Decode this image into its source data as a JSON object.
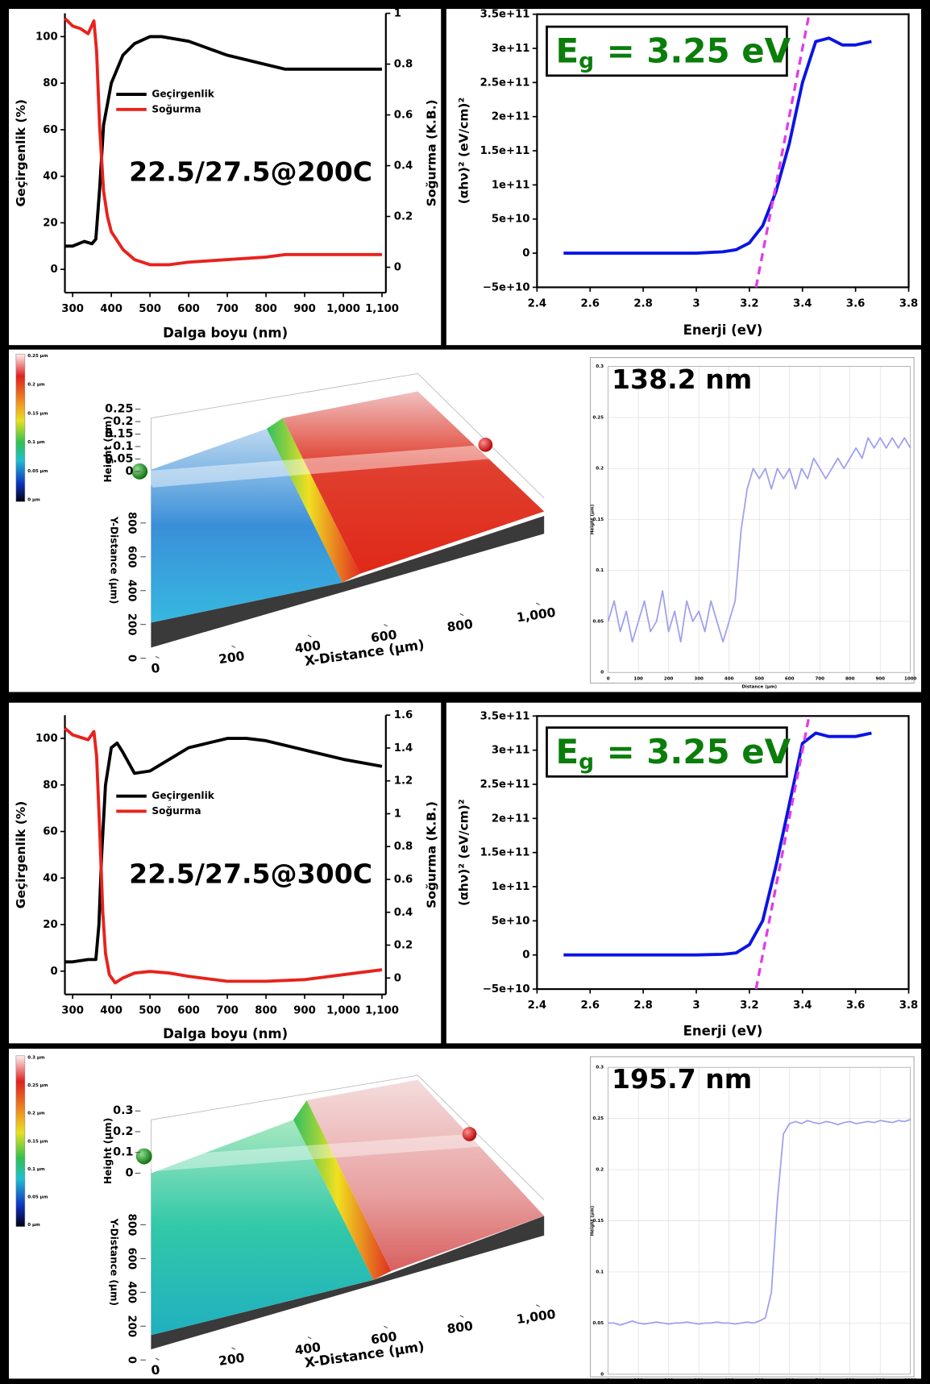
{
  "chart_data": [
    {
      "type": "line",
      "annotation": "22.5/27.5@200C",
      "xlabel": "Dalga boyu (nm)",
      "ylabel": "Geçirgenlik (%)",
      "y2label": "Soğurma (K.B.)",
      "xlim": [
        280,
        1110
      ],
      "xticks": [
        300,
        400,
        500,
        600,
        700,
        800,
        900,
        {
          "value": 1000,
          "label": "1,000"
        },
        {
          "value": 1100,
          "label": "1,100"
        }
      ],
      "ylim": [
        -10,
        110
      ],
      "yticks": [
        0,
        20,
        40,
        60,
        80,
        100
      ],
      "y2lim": [
        -0.1,
        1.0
      ],
      "y2ticks": [
        0,
        0.2,
        0.4,
        0.6,
        0.8,
        1
      ],
      "legend": "center left",
      "series": [
        {
          "name": "Geçirgenlik",
          "color": "#000000",
          "x": [
            280,
            300,
            330,
            350,
            360,
            370,
            380,
            400,
            430,
            460,
            500,
            530,
            600,
            700,
            800,
            850,
            900,
            1000,
            1100
          ],
          "values": [
            10,
            10,
            12,
            11,
            13,
            35,
            62,
            80,
            92,
            97,
            100,
            100,
            98,
            92,
            88,
            86,
            86,
            86,
            86
          ]
        },
        {
          "name": "Soğurma",
          "color": "#e8221c",
          "axis": "y2",
          "x": [
            280,
            300,
            320,
            340,
            355,
            362,
            370,
            380,
            390,
            400,
            430,
            460,
            500,
            550,
            600,
            700,
            800,
            850,
            900,
            1000,
            1100
          ],
          "values": [
            0.98,
            0.95,
            0.94,
            0.92,
            0.97,
            0.85,
            0.55,
            0.3,
            0.2,
            0.14,
            0.07,
            0.03,
            0.01,
            0.01,
            0.02,
            0.03,
            0.04,
            0.05,
            0.05,
            0.05,
            0.05
          ]
        }
      ]
    },
    {
      "type": "line",
      "annotation": {
        "main": "E",
        "sub": "g",
        "rest": "= 3.25 eV"
      },
      "xlabel": "Enerji (eV)",
      "ylabel": "(αhν)² (eV/cm)²",
      "xlim": [
        2.4,
        3.8
      ],
      "xticks": [
        2.4,
        2.6,
        2.8,
        3,
        3.2,
        3.4,
        3.6,
        3.8
      ],
      "ylim": [
        -50000000000.0,
        350000000000.0
      ],
      "yticks": [
        {
          "value": -50000000000.0,
          "label": "−5e+10"
        },
        0,
        {
          "value": 50000000000.0,
          "label": "5e+10"
        },
        {
          "value": 100000000000.0,
          "label": "1e+11"
        },
        {
          "value": 150000000000.0,
          "label": "1.5e+11"
        },
        {
          "value": 200000000000.0,
          "label": "2e+11"
        },
        {
          "value": 250000000000.0,
          "label": "2.5e+11"
        },
        {
          "value": 300000000000.0,
          "label": "3e+11"
        },
        {
          "value": 350000000000.0,
          "label": "3.5e+11"
        }
      ],
      "series": [
        {
          "color": "#0a14e6",
          "x": [
            2.5,
            2.8,
            3.0,
            3.1,
            3.15,
            3.2,
            3.25,
            3.3,
            3.35,
            3.4,
            3.45,
            3.5,
            3.55,
            3.6,
            3.66
          ],
          "values": [
            0,
            0,
            0,
            2000000000.0,
            5000000000.0,
            15000000000.0,
            40000000000.0,
            90000000000.0,
            160000000000.0,
            250000000000.0,
            310000000000.0,
            315000000000.0,
            305000000000.0,
            305000000000.0,
            310000000000.0
          ]
        },
        {
          "color": "#e23ce6",
          "dashed": true,
          "x": [
            3.225,
            3.425
          ],
          "values": [
            -50000000000.0,
            350000000000.0
          ]
        }
      ]
    },
    {
      "type": "surface",
      "xlabel": "X-Distance (µm)",
      "ylabel": "Y-Distance (µm)",
      "zlabel": "Height (µm)",
      "xlim": [
        0,
        1000
      ],
      "xticks": [
        0,
        200,
        400,
        600,
        800,
        {
          "value": 1000,
          "label": "1,000"
        }
      ],
      "ylim": [
        0,
        1000
      ],
      "yticks": [
        0,
        200,
        400,
        600,
        800
      ],
      "zlim": [
        0,
        0.25
      ],
      "zticks": [
        0,
        0.05,
        0.1,
        0.15,
        0.2,
        0.25
      ],
      "colorbar_labels": [
        "0.25 µm",
        "0.2 µm",
        "0.15 µm",
        "0.1 µm",
        "0.05 µm",
        "0 µm"
      ]
    },
    {
      "type": "line",
      "annotation": "138.2 nm",
      "xlabel": "Distance (µm)",
      "ylabel": "Height (µm)",
      "grid": true,
      "xlim": [
        0,
        1000
      ],
      "xticks": [
        0,
        100,
        200,
        300,
        400,
        500,
        600,
        700,
        800,
        900,
        1000
      ],
      "ylim": [
        0,
        0.3
      ],
      "yticks": [
        0,
        0.05,
        0.1,
        0.15,
        0.2,
        0.25,
        0.3
      ],
      "series": [
        {
          "color": "#9f9ff0",
          "x": [
            0,
            20,
            40,
            60,
            80,
            100,
            120,
            140,
            160,
            180,
            200,
            220,
            240,
            260,
            280,
            300,
            320,
            340,
            360,
            380,
            400,
            420,
            440,
            460,
            480,
            500,
            520,
            540,
            560,
            580,
            600,
            620,
            640,
            660,
            680,
            700,
            720,
            740,
            760,
            780,
            800,
            820,
            840,
            860,
            880,
            900,
            920,
            940,
            960,
            980,
            1000
          ],
          "values": [
            0.05,
            0.07,
            0.04,
            0.06,
            0.03,
            0.05,
            0.07,
            0.04,
            0.05,
            0.08,
            0.04,
            0.06,
            0.03,
            0.07,
            0.05,
            0.06,
            0.04,
            0.07,
            0.05,
            0.03,
            0.05,
            0.07,
            0.14,
            0.18,
            0.2,
            0.19,
            0.2,
            0.18,
            0.2,
            0.19,
            0.2,
            0.18,
            0.2,
            0.19,
            0.21,
            0.2,
            0.19,
            0.2,
            0.21,
            0.2,
            0.21,
            0.22,
            0.21,
            0.23,
            0.22,
            0.23,
            0.22,
            0.23,
            0.22,
            0.23,
            0.22
          ]
        }
      ]
    },
    {
      "type": "line",
      "annotation": "22.5/27.5@300C",
      "xlabel": "Dalga boyu (nm)",
      "ylabel": "Geçirgenlik (%)",
      "y2label": "Soğurma (K.B.)",
      "xlim": [
        280,
        1110
      ],
      "xticks": [
        300,
        400,
        500,
        600,
        700,
        800,
        900,
        {
          "value": 1000,
          "label": "1,000"
        },
        {
          "value": 1100,
          "label": "1,100"
        }
      ],
      "ylim": [
        -10,
        110
      ],
      "yticks": [
        0,
        20,
        40,
        60,
        80,
        100
      ],
      "y2lim": [
        -0.1,
        1.6
      ],
      "y2ticks": [
        0,
        0.2,
        0.4,
        0.6,
        0.8,
        1,
        1.2,
        1.4,
        1.6
      ],
      "legend": "center left",
      "series": [
        {
          "name": "Geçirgenlik",
          "color": "#000000",
          "x": [
            280,
            300,
            340,
            360,
            368,
            375,
            385,
            400,
            415,
            430,
            460,
            500,
            550,
            600,
            700,
            750,
            800,
            900,
            1000,
            1100
          ],
          "values": [
            4,
            4,
            5,
            5,
            20,
            50,
            80,
            96,
            98,
            94,
            85,
            86,
            91,
            96,
            100,
            100,
            99,
            95,
            91,
            88
          ]
        },
        {
          "name": "Soğurma",
          "color": "#e8221c",
          "axis": "y2",
          "x": [
            280,
            300,
            340,
            355,
            362,
            370,
            378,
            385,
            395,
            410,
            430,
            460,
            500,
            550,
            600,
            700,
            800,
            900,
            1000,
            1100
          ],
          "values": [
            1.52,
            1.48,
            1.45,
            1.5,
            1.35,
            0.9,
            0.4,
            0.15,
            0.02,
            -0.03,
            0.0,
            0.03,
            0.04,
            0.03,
            0.01,
            -0.02,
            -0.02,
            -0.01,
            0.02,
            0.05
          ]
        }
      ]
    },
    {
      "type": "line",
      "annotation": {
        "main": "E",
        "sub": "g",
        "rest": "= 3.25 eV"
      },
      "xlabel": "Enerji (eV)",
      "ylabel": "(αhν)² (eV/cm)²",
      "xlim": [
        2.4,
        3.8
      ],
      "xticks": [
        2.4,
        2.6,
        2.8,
        3,
        3.2,
        3.4,
        3.6,
        3.8
      ],
      "ylim": [
        -50000000000.0,
        350000000000.0
      ],
      "yticks": [
        {
          "value": -50000000000.0,
          "label": "−5e+10"
        },
        0,
        {
          "value": 50000000000.0,
          "label": "5e+10"
        },
        {
          "value": 100000000000.0,
          "label": "1e+11"
        },
        {
          "value": 150000000000.0,
          "label": "1.5e+11"
        },
        {
          "value": 200000000000.0,
          "label": "2e+11"
        },
        {
          "value": 250000000000.0,
          "label": "2.5e+11"
        },
        {
          "value": 300000000000.0,
          "label": "3e+11"
        },
        {
          "value": 350000000000.0,
          "label": "3.5e+11"
        }
      ],
      "series": [
        {
          "color": "#0a14e6",
          "x": [
            2.5,
            2.8,
            3.0,
            3.1,
            3.15,
            3.2,
            3.25,
            3.3,
            3.35,
            3.4,
            3.45,
            3.5,
            3.55,
            3.6,
            3.66
          ],
          "values": [
            0,
            0,
            0,
            1000000000.0,
            3000000000.0,
            15000000000.0,
            50000000000.0,
            130000000000.0,
            220000000000.0,
            310000000000.0,
            325000000000.0,
            320000000000.0,
            320000000000.0,
            320000000000.0,
            325000000000.0
          ]
        },
        {
          "color": "#e23ce6",
          "dashed": true,
          "x": [
            3.225,
            3.425
          ],
          "values": [
            -50000000000.0,
            350000000000.0
          ]
        }
      ]
    },
    {
      "type": "surface",
      "xlabel": "X-Distance (µm)",
      "ylabel": "Y-Distance (µm)",
      "zlabel": "Height (µm)",
      "xlim": [
        0,
        1000
      ],
      "xticks": [
        0,
        200,
        400,
        600,
        800,
        {
          "value": 1000,
          "label": "1,000"
        }
      ],
      "ylim": [
        0,
        1000
      ],
      "yticks": [
        0,
        200,
        400,
        600,
        800
      ],
      "zlim": [
        0,
        0.3
      ],
      "zticks": [
        0,
        0.1,
        0.2,
        0.3
      ],
      "colorbar_labels": [
        "0.3 µm",
        "0.25 µm",
        "0.2 µm",
        "0.15 µm",
        "0.1 µm",
        "0.05 µm",
        "0 µm"
      ]
    },
    {
      "type": "line",
      "annotation": "195.7 nm",
      "xlabel": "Distance (µm)",
      "ylabel": "Height (µm)",
      "grid": true,
      "xlim": [
        0,
        1000
      ],
      "xticks": [
        0,
        100,
        200,
        300,
        400,
        500,
        600,
        700,
        800,
        900,
        1000
      ],
      "ylim": [
        0,
        0.3
      ],
      "yticks": [
        0,
        0.05,
        0.1,
        0.15,
        0.2,
        0.25,
        0.3
      ],
      "series": [
        {
          "color": "#9f9ff0",
          "x": [
            0,
            20,
            40,
            60,
            80,
            100,
            120,
            140,
            160,
            180,
            200,
            220,
            240,
            260,
            280,
            300,
            320,
            340,
            360,
            380,
            400,
            420,
            440,
            460,
            480,
            500,
            520,
            540,
            560,
            580,
            600,
            620,
            640,
            660,
            680,
            700,
            720,
            740,
            760,
            780,
            800,
            820,
            840,
            860,
            880,
            900,
            920,
            940,
            960,
            980,
            1000
          ],
          "values": [
            0.05,
            0.05,
            0.048,
            0.05,
            0.052,
            0.05,
            0.049,
            0.05,
            0.051,
            0.05,
            0.049,
            0.05,
            0.05,
            0.051,
            0.05,
            0.049,
            0.05,
            0.05,
            0.051,
            0.05,
            0.05,
            0.049,
            0.05,
            0.051,
            0.05,
            0.052,
            0.055,
            0.08,
            0.17,
            0.235,
            0.245,
            0.247,
            0.245,
            0.248,
            0.246,
            0.245,
            0.247,
            0.246,
            0.244,
            0.246,
            0.247,
            0.245,
            0.246,
            0.247,
            0.246,
            0.248,
            0.247,
            0.246,
            0.248,
            0.247,
            0.249
          ]
        }
      ]
    }
  ]
}
